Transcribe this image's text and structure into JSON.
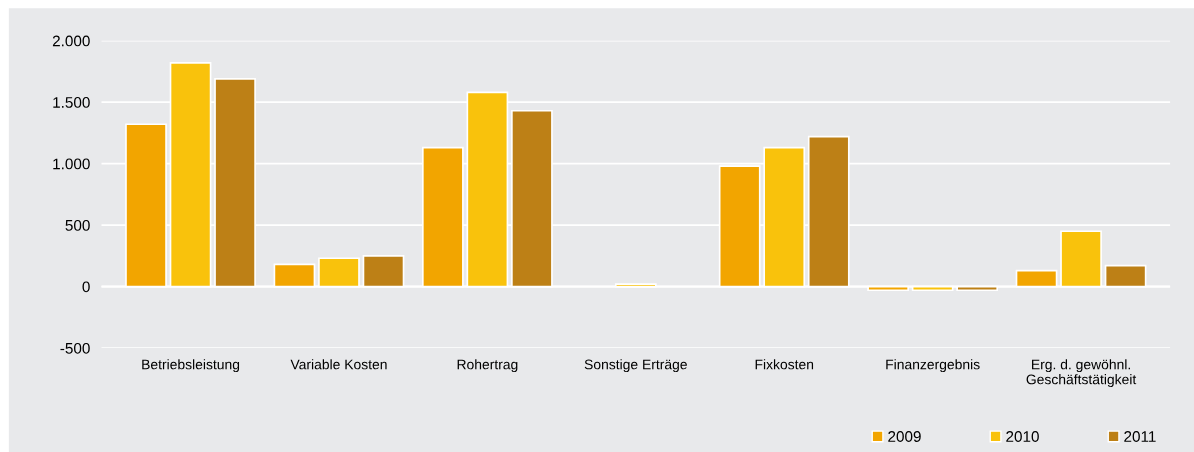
{
  "chart_data": {
    "type": "bar",
    "categories": [
      "Betriebsleistung",
      "Variable Kosten",
      "Rohertrag",
      "Sonstige Erträge",
      "Fixkosten",
      "Finanzergebnis",
      "Erg. d. gewöhnl.\nGeschäftstätigkeit"
    ],
    "series": [
      {
        "name": "2009",
        "color": "#f2a500",
        "values": [
          1320,
          180,
          1130,
          null,
          980,
          -30,
          130
        ]
      },
      {
        "name": "2010",
        "color": "#f9c20c",
        "values": [
          1820,
          230,
          1580,
          20,
          1130,
          -30,
          450
        ]
      },
      {
        "name": "2011",
        "color": "#bd8016",
        "values": [
          1690,
          250,
          1430,
          null,
          1220,
          -30,
          170
        ]
      }
    ],
    "ylim": [
      -500,
      2000
    ],
    "yticks": [
      {
        "value": -500,
        "label": "-500"
      },
      {
        "value": 0,
        "label": "0"
      },
      {
        "value": 500,
        "label": "500"
      },
      {
        "value": 1000,
        "label": "1.000"
      },
      {
        "value": 1500,
        "label": "1.500"
      },
      {
        "value": 2000,
        "label": "2.000"
      }
    ],
    "grid": "y",
    "legend": "bottom right"
  }
}
